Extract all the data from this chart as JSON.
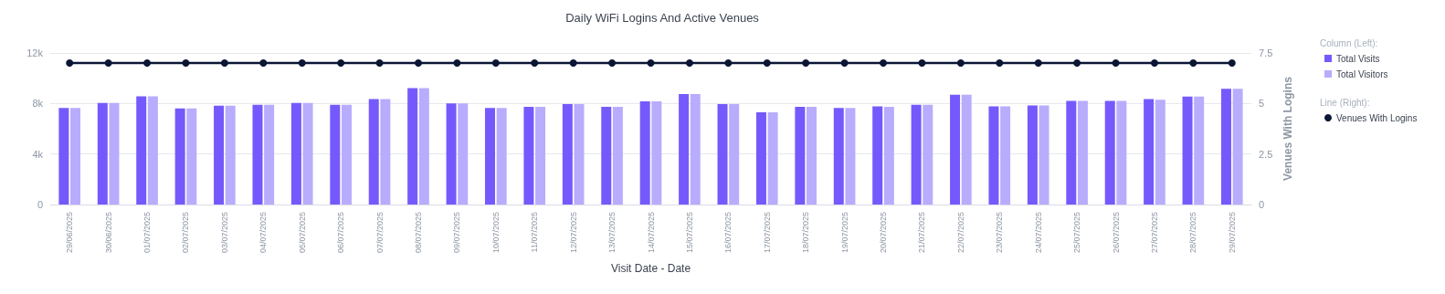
{
  "chart_data": {
    "type": "bar",
    "title": "Daily WiFi Logins And Active Venues",
    "xlabel": "Visit Date - Date",
    "y2label": "Venues With Logins",
    "annotations": [
      "Column (Left):",
      "Line (Right):"
    ],
    "categories": [
      "29/06/2025",
      "30/06/2025",
      "01/07/2025",
      "02/07/2025",
      "03/07/2025",
      "04/07/2025",
      "05/07/2025",
      "06/07/2025",
      "07/07/2025",
      "08/07/2025",
      "09/07/2025",
      "10/07/2025",
      "11/07/2025",
      "12/07/2025",
      "13/07/2025",
      "14/07/2025",
      "15/07/2025",
      "16/07/2025",
      "17/07/2025",
      "18/07/2025",
      "19/07/2025",
      "20/07/2025",
      "21/07/2025",
      "22/07/2025",
      "23/07/2025",
      "24/07/2025",
      "25/07/2025",
      "26/07/2025",
      "27/07/2025",
      "28/07/2025",
      "29/07/2025"
    ],
    "series": [
      {
        "name": "Total Visits",
        "color": "#7659fc",
        "values": [
          7650,
          8050,
          8570,
          7600,
          7830,
          7900,
          8050,
          7900,
          8350,
          9220,
          8000,
          7650,
          7730,
          7950,
          7730,
          8170,
          8750,
          7950,
          7300,
          7730,
          7650,
          7780,
          7900,
          8700,
          7780,
          7850,
          8200,
          8200,
          8350,
          8550,
          9170
        ]
      },
      {
        "name": "Total Visitors",
        "color": "#b8acfd",
        "values": [
          7650,
          8050,
          8570,
          7600,
          7830,
          7900,
          8050,
          7900,
          8350,
          9220,
          8000,
          7650,
          7730,
          7950,
          7730,
          8170,
          8750,
          7950,
          7300,
          7730,
          7650,
          7730,
          7900,
          8700,
          7780,
          7850,
          8200,
          8200,
          8300,
          8550,
          9170
        ]
      },
      {
        "name": "Venues With Logins",
        "color": "#0b1534",
        "type": "line",
        "axis": "y2",
        "marker": "circle",
        "values": [
          7,
          7,
          7,
          7,
          7,
          7,
          7,
          7,
          7,
          7,
          7,
          7,
          7,
          7,
          7,
          7,
          7,
          7,
          7,
          7,
          7,
          7,
          7,
          7,
          7,
          7,
          7,
          7,
          7,
          7,
          7
        ]
      }
    ],
    "ylim": [
      0,
      12000
    ],
    "yticks": [
      0,
      {
        "value": 4000,
        "label": "4k"
      },
      {
        "value": 8000,
        "label": "8k"
      },
      {
        "value": 12000,
        "label": "12k"
      }
    ],
    "y2lim": [
      0,
      7.5
    ],
    "y2ticks": [
      0,
      2.5,
      5,
      7.5
    ],
    "grid": "y",
    "legend": "right"
  }
}
